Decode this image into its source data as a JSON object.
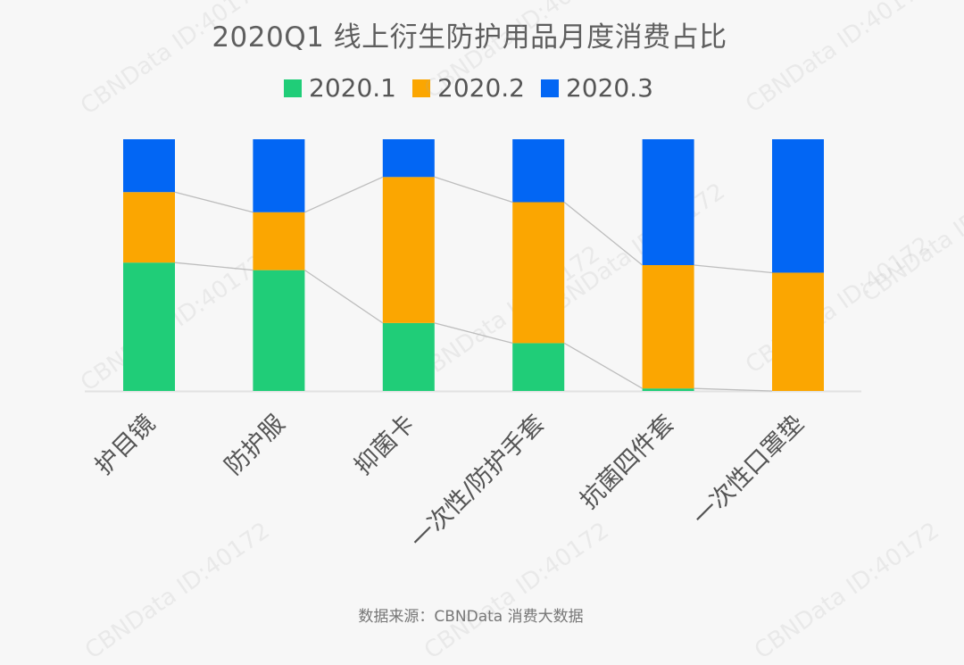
{
  "chart_data": {
    "type": "bar",
    "stacked": true,
    "normalized": true,
    "title": "2020Q1 线上衍生防护用品月度消费占比",
    "categories": [
      "护目镜",
      "防护服",
      "抑菌卡",
      "一次性/防护手套",
      "抗菌四件套",
      "一次性口罩垫"
    ],
    "series": [
      {
        "name": "2020.1",
        "color": "#20cd78",
        "values": [
          0.51,
          0.48,
          0.27,
          0.19,
          0.01,
          0.0
        ]
      },
      {
        "name": "2020.2",
        "color": "#fba601",
        "values": [
          0.28,
          0.23,
          0.58,
          0.56,
          0.49,
          0.47
        ]
      },
      {
        "name": "2020.3",
        "color": "#0266f4",
        "values": [
          0.21,
          0.29,
          0.15,
          0.25,
          0.5,
          0.53
        ]
      }
    ],
    "ylim": [
      0,
      1
    ],
    "xlabel": "",
    "ylabel": "",
    "legend_position": "top",
    "connector_lines": true
  },
  "source": "数据来源：CBNData 消费大数据",
  "watermark": "CBNData ID:40172"
}
